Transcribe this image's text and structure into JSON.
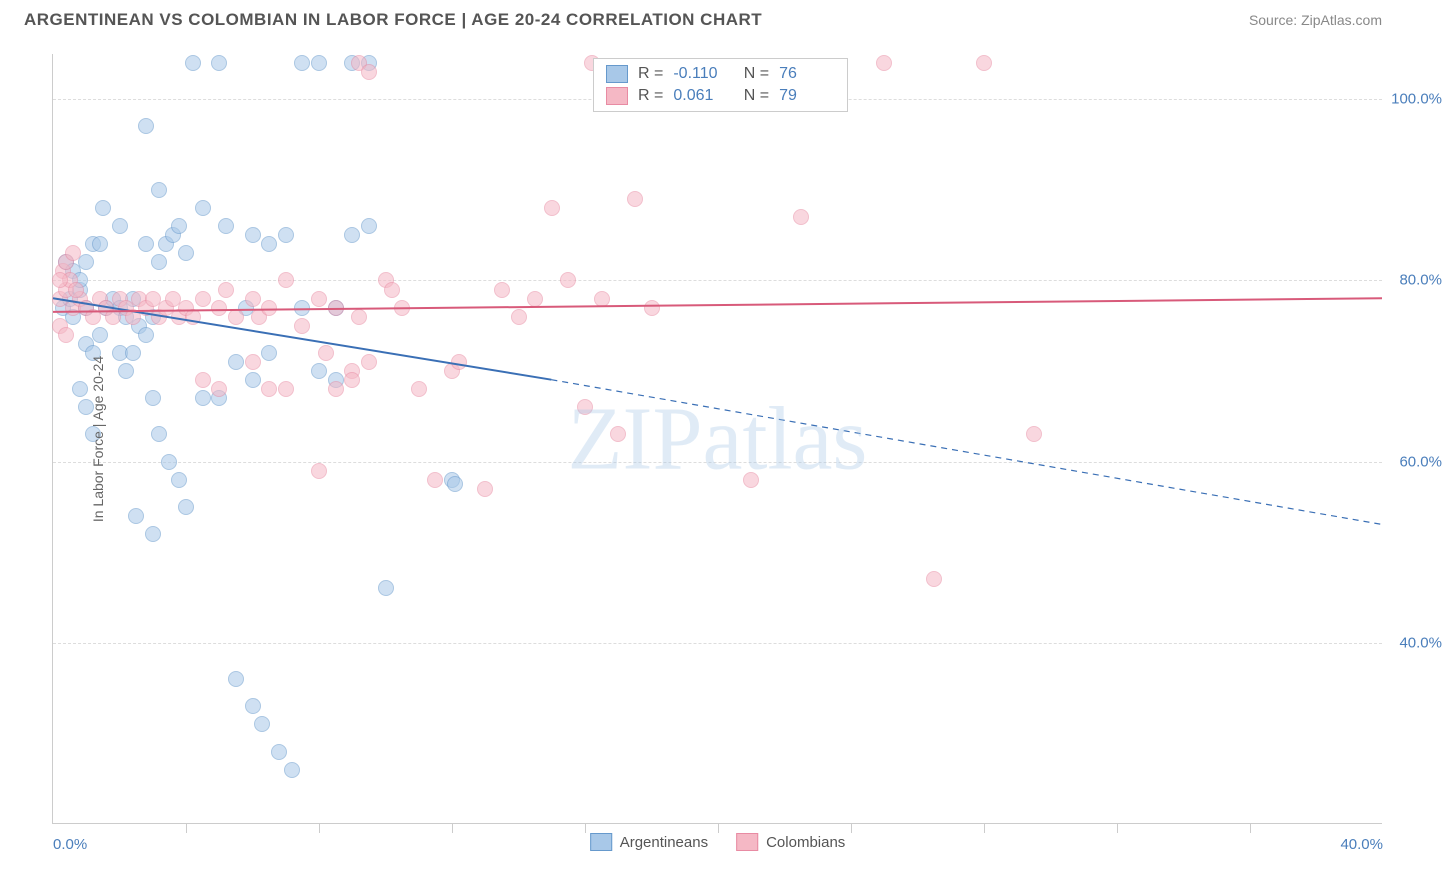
{
  "title": "ARGENTINEAN VS COLOMBIAN IN LABOR FORCE | AGE 20-24 CORRELATION CHART",
  "source": "Source: ZipAtlas.com",
  "watermark": "ZIPatlas",
  "y_axis_label": "In Labor Force | Age 20-24",
  "chart": {
    "type": "scatter",
    "xlim": [
      0,
      40
    ],
    "ylim": [
      20,
      105
    ],
    "x_ticks": [
      0,
      40
    ],
    "x_tick_labels": [
      "0.0%",
      "40.0%"
    ],
    "x_minor_ticks": [
      4,
      8,
      12,
      16,
      20,
      24,
      28,
      32,
      36
    ],
    "y_ticks": [
      40,
      60,
      80,
      100
    ],
    "y_tick_labels": [
      "40.0%",
      "60.0%",
      "80.0%",
      "100.0%"
    ],
    "background_color": "#ffffff",
    "grid_color": "#dddddd",
    "series": [
      {
        "name": "Argentineans",
        "color_fill": "#a8c8e8",
        "color_stroke": "#6699cc",
        "r": "-0.110",
        "n": "76",
        "trend": {
          "x1": 0,
          "y1": 78,
          "x2": 15,
          "y2": 69,
          "dash_x2": 40,
          "dash_y2": 53,
          "stroke": "#3a6fb5",
          "width": 2
        },
        "points": [
          [
            0.3,
            77
          ],
          [
            0.5,
            78
          ],
          [
            0.6,
            76
          ],
          [
            0.8,
            79
          ],
          [
            1.0,
            77
          ],
          [
            0.4,
            82
          ],
          [
            0.6,
            81
          ],
          [
            0.8,
            80
          ],
          [
            1.0,
            82
          ],
          [
            1.2,
            84
          ],
          [
            1.4,
            84
          ],
          [
            1.0,
            73
          ],
          [
            1.2,
            72
          ],
          [
            1.4,
            74
          ],
          [
            1.6,
            77
          ],
          [
            1.8,
            78
          ],
          [
            2.0,
            77
          ],
          [
            2.2,
            76
          ],
          [
            2.4,
            78
          ],
          [
            0.8,
            68
          ],
          [
            1.0,
            66
          ],
          [
            1.2,
            63
          ],
          [
            2.0,
            72
          ],
          [
            2.2,
            70
          ],
          [
            2.4,
            72
          ],
          [
            2.6,
            75
          ],
          [
            2.8,
            74
          ],
          [
            3.0,
            76
          ],
          [
            3.2,
            82
          ],
          [
            3.4,
            84
          ],
          [
            3.6,
            85
          ],
          [
            3.8,
            86
          ],
          [
            4.0,
            83
          ],
          [
            4.2,
            104
          ],
          [
            5.0,
            104
          ],
          [
            2.8,
            97
          ],
          [
            3.2,
            90
          ],
          [
            4.5,
            88
          ],
          [
            5.2,
            86
          ],
          [
            6.0,
            85
          ],
          [
            6.5,
            84
          ],
          [
            7.0,
            85
          ],
          [
            7.5,
            104
          ],
          [
            8.0,
            104
          ],
          [
            9.0,
            104
          ],
          [
            9.5,
            86
          ],
          [
            3.0,
            67
          ],
          [
            3.2,
            63
          ],
          [
            3.5,
            60
          ],
          [
            3.8,
            58
          ],
          [
            4.0,
            55
          ],
          [
            5.5,
            71
          ],
          [
            6.0,
            69
          ],
          [
            6.5,
            72
          ],
          [
            7.5,
            77
          ],
          [
            8.0,
            70
          ],
          [
            8.5,
            69
          ],
          [
            9.0,
            85
          ],
          [
            9.5,
            104
          ],
          [
            10.0,
            46
          ],
          [
            12.0,
            58
          ],
          [
            12.1,
            57.5
          ],
          [
            5.5,
            36
          ],
          [
            6.0,
            33
          ],
          [
            6.3,
            31
          ],
          [
            6.8,
            28
          ],
          [
            7.2,
            26
          ],
          [
            2.5,
            54
          ],
          [
            3.0,
            52
          ],
          [
            4.5,
            67
          ],
          [
            5.0,
            67
          ],
          [
            5.8,
            77
          ],
          [
            8.5,
            77
          ],
          [
            1.5,
            88
          ],
          [
            2.0,
            86
          ],
          [
            2.8,
            84
          ]
        ]
      },
      {
        "name": "Colombians",
        "color_fill": "#f5b8c5",
        "color_stroke": "#e88ba3",
        "r": "0.061",
        "n": "79",
        "trend": {
          "x1": 0,
          "y1": 76.5,
          "x2": 40,
          "y2": 78,
          "stroke": "#d85a7a",
          "width": 2
        },
        "points": [
          [
            0.2,
            78
          ],
          [
            0.4,
            79
          ],
          [
            0.6,
            77
          ],
          [
            0.8,
            78
          ],
          [
            0.3,
            81
          ],
          [
            0.5,
            80
          ],
          [
            0.7,
            79
          ],
          [
            1.0,
            77
          ],
          [
            1.2,
            76
          ],
          [
            1.4,
            78
          ],
          [
            1.6,
            77
          ],
          [
            1.8,
            76
          ],
          [
            2.0,
            78
          ],
          [
            2.2,
            77
          ],
          [
            2.4,
            76
          ],
          [
            2.6,
            78
          ],
          [
            2.8,
            77
          ],
          [
            3.0,
            78
          ],
          [
            3.2,
            76
          ],
          [
            3.4,
            77
          ],
          [
            3.6,
            78
          ],
          [
            3.8,
            76
          ],
          [
            4.0,
            77
          ],
          [
            4.2,
            76
          ],
          [
            4.5,
            78
          ],
          [
            5.0,
            77
          ],
          [
            5.2,
            79
          ],
          [
            5.5,
            76
          ],
          [
            6.0,
            78
          ],
          [
            6.2,
            76
          ],
          [
            6.5,
            77
          ],
          [
            7.0,
            80
          ],
          [
            7.5,
            75
          ],
          [
            8.0,
            78
          ],
          [
            8.2,
            72
          ],
          [
            8.5,
            77
          ],
          [
            9.0,
            70
          ],
          [
            9.2,
            76
          ],
          [
            9.5,
            71
          ],
          [
            10.0,
            80
          ],
          [
            10.2,
            79
          ],
          [
            10.5,
            77
          ],
          [
            11.0,
            68
          ],
          [
            11.5,
            58
          ],
          [
            12.0,
            70
          ],
          [
            12.2,
            71
          ],
          [
            13.0,
            57
          ],
          [
            13.5,
            79
          ],
          [
            14.0,
            76
          ],
          [
            14.5,
            78
          ],
          [
            15.0,
            88
          ],
          [
            15.5,
            80
          ],
          [
            16.0,
            66
          ],
          [
            16.2,
            104
          ],
          [
            16.5,
            78
          ],
          [
            17.0,
            63
          ],
          [
            17.5,
            89
          ],
          [
            18.0,
            77
          ],
          [
            21.0,
            58
          ],
          [
            22.5,
            87
          ],
          [
            25.0,
            104
          ],
          [
            26.5,
            47
          ],
          [
            28.0,
            104
          ],
          [
            29.5,
            63
          ],
          [
            9.2,
            104
          ],
          [
            9.5,
            103
          ],
          [
            4.5,
            69
          ],
          [
            5.0,
            68
          ],
          [
            6.5,
            68
          ],
          [
            7.0,
            68
          ],
          [
            8.5,
            68
          ],
          [
            9.0,
            69
          ],
          [
            8.0,
            59
          ],
          [
            6.0,
            71
          ],
          [
            0.2,
            75
          ],
          [
            0.4,
            74
          ],
          [
            0.2,
            80
          ],
          [
            0.4,
            82
          ],
          [
            0.6,
            83
          ]
        ]
      }
    ]
  },
  "legend": {
    "items": [
      {
        "label": "Argentineans",
        "fill": "#a8c8e8",
        "stroke": "#6699cc"
      },
      {
        "label": "Colombians",
        "fill": "#f5b8c5",
        "stroke": "#e88ba3"
      }
    ]
  }
}
